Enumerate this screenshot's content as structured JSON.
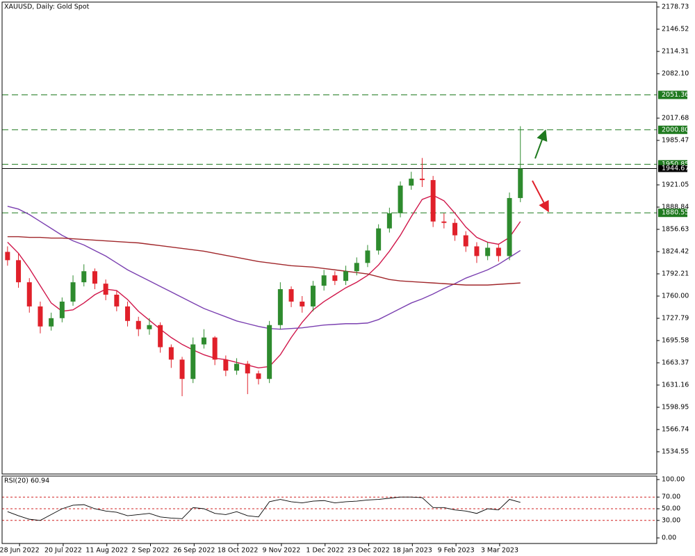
{
  "chart_data": [
    {
      "type": "candlestick",
      "title": "XAUUSD, Daily:  Gold Spot",
      "xlim": [
        -0.5,
        59.5
      ],
      "xticks": [
        {
          "value": 1.1,
          "label": "28 Jun 2022"
        },
        {
          "value": 5.1,
          "label": "20 Jul 2022"
        },
        {
          "value": 9.1,
          "label": "11 Aug 2022"
        },
        {
          "value": 13.1,
          "label": "2 Sep 2022"
        },
        {
          "value": 17.1,
          "label": "26 Sep 2022"
        },
        {
          "value": 21.1,
          "label": "18 Oct 2022"
        },
        {
          "value": 25.1,
          "label": "9 Nov 2022"
        },
        {
          "value": 29.1,
          "label": "1 Dec 2022"
        },
        {
          "value": 33.1,
          "label": "23 Dec 2022"
        },
        {
          "value": 37.1,
          "label": "18 Jan 2023"
        },
        {
          "value": 41.1,
          "label": "9 Feb 2023"
        },
        {
          "value": 45.1,
          "label": "3 Mar 2023"
        }
      ],
      "ylim": [
        1502.34,
        2185.77
      ],
      "yticks": [
        2178.73,
        2146.52,
        2114.31,
        {
          "value": 2082.1,
          "label": "2082.10"
        },
        2017.68,
        1985.47,
        1921.05,
        1888.84,
        1856.63,
        1824.42,
        1792.21,
        {
          "value": 1760,
          "label": "1760.00"
        },
        1727.79,
        1695.58,
        1663.37,
        1631.16,
        1598.95,
        1566.74,
        1534.55
      ],
      "up_color": "#2e8b2e",
      "down_color": "#e0202a",
      "open": [
        1824,
        1812,
        1780,
        1745,
        1716,
        1728,
        1752,
        1780,
        1796,
        1778,
        1762,
        1745,
        1724,
        1712,
        1718,
        1686,
        1668,
        1640,
        1690,
        1700,
        1668,
        1652,
        1662,
        1648,
        1640,
        1718,
        1770,
        1752,
        1745,
        1775,
        1790,
        1782,
        1796,
        1808,
        1826,
        1858,
        1880,
        1920,
        1930,
        1928,
        1868,
        1866,
        1848,
        1832,
        1818,
        1830,
        1818,
        1902
      ],
      "high": [
        1832,
        1822,
        1786,
        1752,
        1736,
        1758,
        1790,
        1806,
        1800,
        1784,
        1768,
        1752,
        1730,
        1728,
        1722,
        1690,
        1672,
        1700,
        1712,
        1702,
        1674,
        1670,
        1666,
        1652,
        1724,
        1780,
        1774,
        1760,
        1782,
        1798,
        1796,
        1804,
        1816,
        1834,
        1864,
        1888,
        1926,
        1940,
        1960,
        1934,
        1880,
        1872,
        1854,
        1838,
        1838,
        1836,
        1910,
        2006
      ],
      "low": [
        1804,
        1772,
        1736,
        1706,
        1710,
        1722,
        1746,
        1774,
        1770,
        1754,
        1738,
        1716,
        1702,
        1704,
        1678,
        1656,
        1615,
        1634,
        1684,
        1660,
        1644,
        1646,
        1618,
        1632,
        1634,
        1712,
        1744,
        1736,
        1738,
        1768,
        1776,
        1776,
        1790,
        1802,
        1820,
        1852,
        1874,
        1914,
        1918,
        1860,
        1858,
        1840,
        1824,
        1808,
        1812,
        1810,
        1812,
        1896
      ],
      "close": [
        1812,
        1780,
        1745,
        1716,
        1728,
        1752,
        1780,
        1796,
        1778,
        1762,
        1745,
        1724,
        1712,
        1718,
        1686,
        1668,
        1640,
        1690,
        1700,
        1668,
        1652,
        1662,
        1648,
        1640,
        1718,
        1770,
        1752,
        1745,
        1775,
        1790,
        1782,
        1796,
        1808,
        1826,
        1858,
        1880,
        1920,
        1930,
        1928,
        1868,
        1866,
        1848,
        1832,
        1818,
        1830,
        1818,
        1902,
        1944.67
      ],
      "lines": [
        {
          "color": "#d0164a",
          "values": [
            1838,
            1822,
            1800,
            1775,
            1750,
            1738,
            1740,
            1750,
            1762,
            1770,
            1768,
            1755,
            1738,
            1725,
            1712,
            1700,
            1690,
            1682,
            1675,
            1670,
            1668,
            1664,
            1660,
            1656,
            1658,
            1675,
            1700,
            1722,
            1740,
            1752,
            1762,
            1772,
            1780,
            1790,
            1805,
            1825,
            1848,
            1875,
            1900,
            1906,
            1898,
            1880,
            1860,
            1845,
            1838,
            1835,
            1845,
            1868
          ]
        },
        {
          "color": "#7a3fb0",
          "values": [
            1890,
            1886,
            1878,
            1868,
            1858,
            1848,
            1840,
            1834,
            1826,
            1818,
            1808,
            1798,
            1790,
            1782,
            1774,
            1766,
            1758,
            1750,
            1742,
            1736,
            1730,
            1724,
            1720,
            1716,
            1713,
            1712,
            1713,
            1714,
            1716,
            1718,
            1719,
            1720,
            1720,
            1721,
            1726,
            1734,
            1742,
            1750,
            1756,
            1763,
            1771,
            1778,
            1786,
            1792,
            1798,
            1806,
            1816,
            1826
          ]
        },
        {
          "color": "#a0262a",
          "values": [
            1846,
            1846,
            1845,
            1845,
            1844,
            1844,
            1843,
            1842,
            1841,
            1840,
            1839,
            1838,
            1837,
            1835,
            1833,
            1831,
            1829,
            1827,
            1825,
            1822,
            1819,
            1816,
            1813,
            1810,
            1808,
            1806,
            1804,
            1803,
            1802,
            1800,
            1798,
            1796,
            1794,
            1792,
            1788,
            1784,
            1782,
            1781,
            1780,
            1779,
            1778,
            1777,
            1776,
            1776,
            1776,
            1777,
            1778,
            1779
          ]
        }
      ],
      "levels": [
        2051.36,
        {
          "value": 2000.8,
          "label": "2000.80"
        },
        1950.85,
        1880.55
      ],
      "level_color": "#1f7a1f",
      "last": 1944.67
    },
    {
      "type": "line",
      "title": "RSI(20) 60.94",
      "color": "#000000",
      "ylim": [
        -9.52,
        105.95
      ],
      "yticks": [
        {
          "value": 100,
          "label": "100.00"
        },
        {
          "value": 70,
          "label": "70.00"
        },
        {
          "value": 50,
          "label": "50.00"
        },
        {
          "value": 30,
          "label": "30.00"
        },
        {
          "value": 0,
          "label": "0.00"
        }
      ],
      "levels": [
        70,
        50,
        30
      ],
      "level_color": "#d02020",
      "values": [
        45,
        38,
        32,
        30,
        40,
        50,
        56,
        57,
        50,
        46,
        44,
        38,
        40,
        42,
        36,
        34,
        33,
        52,
        50,
        42,
        40,
        45,
        38,
        36,
        62,
        66,
        62,
        60,
        63,
        64,
        60,
        62,
        63,
        65,
        66,
        68,
        70,
        70,
        69,
        52,
        52,
        48,
        46,
        42,
        50,
        48,
        66,
        60.94
      ]
    }
  ]
}
